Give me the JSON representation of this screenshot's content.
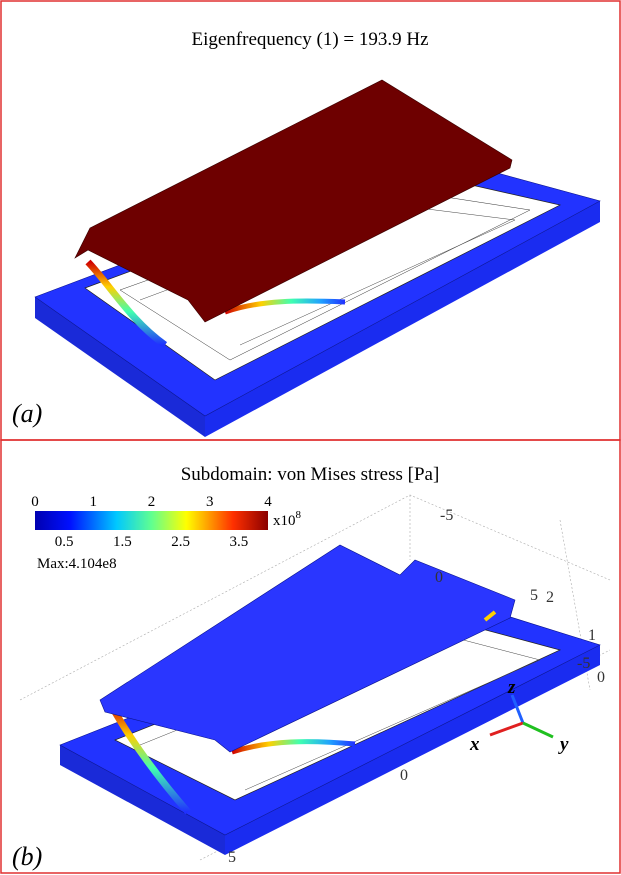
{
  "panel_a": {
    "title": "Eigenfrequency (1) = 193.9 Hz",
    "label": "(a)"
  },
  "panel_b": {
    "title": "Subdomain: von Mises stress [Pa]",
    "label": "(b)",
    "colorbar": {
      "major_ticks": [
        "0",
        "1",
        "2",
        "3",
        "4"
      ],
      "minor_ticks": [
        "0.5",
        "1.5",
        "2.5",
        "3.5"
      ],
      "multiplier_base": "x10",
      "multiplier_exponent": "8",
      "max_text": "Max:4.104e8"
    },
    "axis_ticks": [
      "-5",
      "0",
      "5",
      "2",
      "1",
      "0",
      "-5",
      "0",
      "5"
    ],
    "triad": {
      "z": "z",
      "x": "x",
      "y": "y"
    }
  }
}
